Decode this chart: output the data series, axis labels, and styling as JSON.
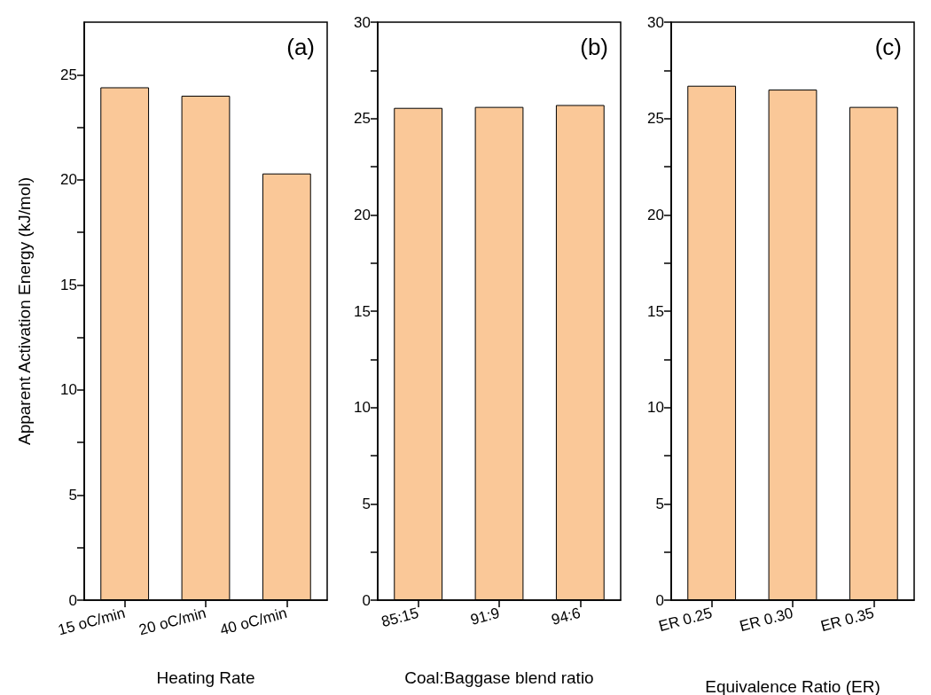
{
  "chart_data": [
    {
      "type": "bar",
      "categories": [
        "15 oC/min",
        "20 oC/min",
        "40 oC/min"
      ],
      "values": [
        24.4,
        24.0,
        20.3
      ],
      "color": "#fac898",
      "xlabel": "Heating Rate",
      "ylabel": "Apparent Activation Energy (kJ/mol)",
      "annotations": [
        "(a)"
      ],
      "ylim": [
        0,
        27.5
      ],
      "yticks": [
        0,
        {
          "value": 2.5,
          "label": null
        },
        5,
        {
          "value": 7.5,
          "label": null
        },
        10,
        {
          "value": 12.5,
          "label": null
        },
        15,
        {
          "value": 17.5,
          "label": null
        },
        20,
        {
          "value": 22.5,
          "label": null
        },
        25
      ],
      "grid": false
    },
    {
      "type": "bar",
      "categories": [
        "85:15",
        "91:9",
        "94:6"
      ],
      "values": [
        25.55,
        25.6,
        25.7
      ],
      "color": "#fac898",
      "xlabel": "Coal:Baggase blend ratio",
      "annotations": [
        "(b)"
      ],
      "ylim": [
        0,
        30
      ],
      "yticks": [
        0,
        {
          "value": 2.5,
          "label": null
        },
        5,
        {
          "value": 7.5,
          "label": null
        },
        10,
        {
          "value": 12.5,
          "label": null
        },
        15,
        {
          "value": 17.5,
          "label": null
        },
        20,
        {
          "value": 22.5,
          "label": null
        },
        25,
        {
          "value": 27.5,
          "label": null
        },
        30
      ],
      "grid": false
    },
    {
      "type": "bar",
      "categories": [
        "ER 0.25",
        "ER 0.30",
        "ER 0.35"
      ],
      "values": [
        26.7,
        26.5,
        25.6
      ],
      "color": "#fac898",
      "xlabel": "Equivalence Ratio (ER)",
      "annotations": [
        "(c)"
      ],
      "ylim": [
        0,
        30
      ],
      "yticks": [
        0,
        {
          "value": 2.5,
          "label": null
        },
        5,
        {
          "value": 7.5,
          "label": null
        },
        10,
        {
          "value": 12.5,
          "label": null
        },
        15,
        {
          "value": 17.5,
          "label": null
        },
        20,
        {
          "value": 22.5,
          "label": null
        },
        25,
        {
          "value": 27.5,
          "label": null
        },
        30
      ],
      "grid": false
    }
  ]
}
